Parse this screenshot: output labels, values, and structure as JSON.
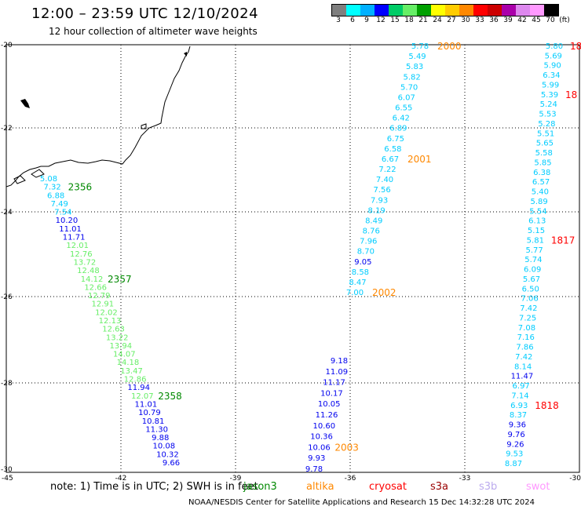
{
  "title": "12:00 – 23:59 UTC 12/10/2024",
  "subtitle": "12 hour collection of altimeter wave heights",
  "legend": {
    "colors": [
      "#7f7f7f",
      "#00ffff",
      "#00b0ff",
      "#0000ff",
      "#00cc66",
      "#66ee66",
      "#00a000",
      "#ffff00",
      "#ffcc00",
      "#ff8800",
      "#ff0000",
      "#cc0000",
      "#aa00aa",
      "#dd88ee",
      "#ff99ff",
      "#000000"
    ],
    "labels": [
      "3",
      "6",
      "9",
      "12",
      "15",
      "18",
      "21",
      "24",
      "27",
      "30",
      "33",
      "36",
      "39",
      "42",
      "45",
      "70",
      "(ft)"
    ]
  },
  "axes": {
    "lon_ticks": [
      "-45",
      "-42",
      "-39",
      "-36",
      "-33",
      "-30"
    ],
    "lat_ticks": [
      "-20",
      "-22",
      "-24",
      "-26",
      "-28",
      "-30"
    ]
  },
  "note": "note:  1) Time is in UTC;  2) SWH is in feet",
  "satellites": [
    {
      "name": "jason3",
      "color": "#008800"
    },
    {
      "name": "altika",
      "color": "#ff8800"
    },
    {
      "name": "cryosat",
      "color": "#ff0000"
    },
    {
      "name": "s3a",
      "color": "#990000"
    },
    {
      "name": "s3b",
      "color": "#bbaaee"
    },
    {
      "name": "swot",
      "color": "#ff99ff"
    }
  ],
  "credit": "NOAA/NESDIS Center for Satellite Applications and Research     15 Dec 14:32:28 UTC 2024",
  "tracks": [
    {
      "id": "track-a",
      "values": [
        "5.08",
        "7.32",
        "6.88",
        "7.49",
        "7.54",
        "10.20",
        "11.01",
        "11.71",
        "12.01",
        "12.76",
        "13.72",
        "12.48",
        "14.12",
        "12.66",
        "12.79",
        "12.91",
        "12.02",
        "12.13",
        "12.63",
        "13.22",
        "13.94",
        "14.07",
        "14.18",
        "13.47",
        "12.86",
        "11.94",
        "12.07",
        "11.01",
        "10.79",
        "10.81",
        "11.30",
        "9.88",
        "10.08",
        "10.32",
        "9.66"
      ],
      "colors": [
        "#00ccff",
        "#00ccff",
        "#00ccff",
        "#00ccff",
        "#00ccff",
        "#0000ee",
        "#0000ee",
        "#0000ee",
        "#66ee66",
        "#66ee66",
        "#66ee66",
        "#66ee66",
        "#66ee66",
        "#66ee66",
        "#66ee66",
        "#66ee66",
        "#66ee66",
        "#66ee66",
        "#66ee66",
        "#66ee66",
        "#66ee66",
        "#66ee66",
        "#66ee66",
        "#66ee66",
        "#66ee66",
        "#0000ee",
        "#66ee66",
        "#0000ee",
        "#0000ee",
        "#0000ee",
        "#0000ee",
        "#0000ee",
        "#0000ee",
        "#0000ee",
        "#0000ee"
      ],
      "times": [
        {
          "label": "2356",
          "color": "#008800",
          "index": 1
        },
        {
          "label": "2357",
          "color": "#008800",
          "index": 12
        },
        {
          "label": "2358",
          "color": "#008800",
          "index": 26
        }
      ]
    },
    {
      "id": "track-b",
      "values": [
        "5.78",
        "5.49",
        "5.83",
        "5.82",
        "5.70",
        "6.07",
        "6.55",
        "6.42",
        "6.89",
        "6.75",
        "6.58",
        "6.67",
        "7.22",
        "7.40",
        "7.56",
        "7.93",
        "8.19",
        "8.49",
        "8.76",
        "7.96",
        "8.70",
        "9.05",
        "8.58",
        "8.47",
        "7.00"
      ],
      "colors": [
        "#00ccff",
        "#00ccff",
        "#00ccff",
        "#00ccff",
        "#00ccff",
        "#00ccff",
        "#00ccff",
        "#00ccff",
        "#00ccff",
        "#00ccff",
        "#00ccff",
        "#00ccff",
        "#00ccff",
        "#00ccff",
        "#00ccff",
        "#00ccff",
        "#00ccff",
        "#00ccff",
        "#00ccff",
        "#00ccff",
        "#00ccff",
        "#0000ee",
        "#00ccff",
        "#00ccff",
        "#00ccff"
      ],
      "times": [
        {
          "label": "2000",
          "color": "#ff8800",
          "index": 0
        },
        {
          "label": "2001",
          "color": "#ff8800",
          "index": 11
        },
        {
          "label": "2002",
          "color": "#ff8800",
          "index": 24
        }
      ]
    },
    {
      "id": "track-c",
      "values": [
        "9.18",
        "11.09",
        "11.17",
        "10.17",
        "10.05",
        "11.26",
        "10.60",
        "10.36",
        "10.06",
        "9.93",
        "9.78"
      ],
      "colors": [
        "#0000ee",
        "#0000ee",
        "#0000ee",
        "#0000ee",
        "#0000ee",
        "#0000ee",
        "#0000ee",
        "#0000ee",
        "#0000ee",
        "#0000ee",
        "#0000ee"
      ],
      "times": [
        {
          "label": "2003",
          "color": "#ff8800",
          "index": 8
        }
      ]
    },
    {
      "id": "track-d",
      "values": [
        "5.80",
        "5.69",
        "5.90",
        "6.34",
        "5.99",
        "5.39",
        "5.24",
        "5.53",
        "5.28",
        "5.51",
        "5.65",
        "5.58",
        "5.85",
        "6.38",
        "6.57",
        "5.40",
        "5.89",
        "5.54",
        "6.13",
        "5.15",
        "5.81",
        "5.77",
        "5.74",
        "6.09",
        "5.67",
        "6.50",
        "7.06",
        "7.42",
        "7.25",
        "7.08",
        "7.16",
        "7.86",
        "7.42",
        "8.14",
        "11.47",
        "6.97",
        "7.14",
        "6.93",
        "8.37",
        "9.36",
        "9.76",
        "9.26",
        "9.53",
        "8.87"
      ],
      "colors": [
        "#00ccff",
        "#00ccff",
        "#00ccff",
        "#00ccff",
        "#00ccff",
        "#00ccff",
        "#00ccff",
        "#00ccff",
        "#00ccff",
        "#00ccff",
        "#00ccff",
        "#00ccff",
        "#00ccff",
        "#00ccff",
        "#00ccff",
        "#00ccff",
        "#00ccff",
        "#00ccff",
        "#00ccff",
        "#00ccff",
        "#00ccff",
        "#00ccff",
        "#00ccff",
        "#00ccff",
        "#00ccff",
        "#00ccff",
        "#00ccff",
        "#00ccff",
        "#00ccff",
        "#00ccff",
        "#00ccff",
        "#00ccff",
        "#00ccff",
        "#00ccff",
        "#0000ee",
        "#00ccff",
        "#00ccff",
        "#00ccff",
        "#00ccff",
        "#0000ee",
        "#0000ee",
        "#0000ee",
        "#00ccff",
        "#00ccff"
      ],
      "times": [
        {
          "label": "18",
          "color": "#ff0000",
          "index": 0
        },
        {
          "label": "18",
          "color": "#ff0000",
          "index": 5
        },
        {
          "label": "1817",
          "color": "#ff0000",
          "index": 20
        },
        {
          "label": "1818",
          "color": "#ff0000",
          "index": 37
        }
      ]
    }
  ]
}
